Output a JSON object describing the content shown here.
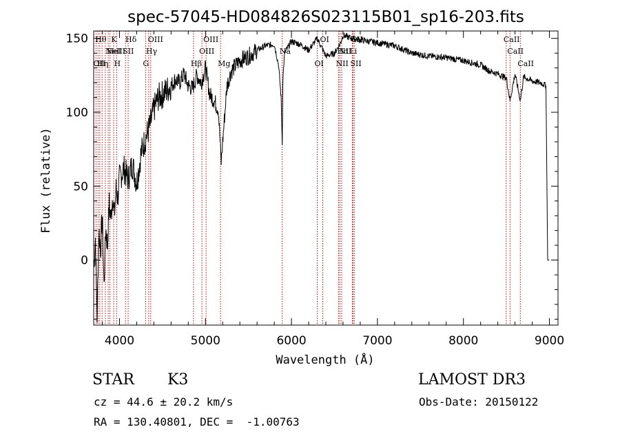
{
  "chart_data": {
    "type": "line",
    "title": "spec-57045-HD084826S023115B01_sp16-203.fits",
    "xlabel": "Wavelength (Å)",
    "ylabel": "Flux (relative)",
    "xlim": [
      3700,
      9100
    ],
    "ylim": [
      -44,
      155
    ],
    "xticks": [
      4000,
      5000,
      6000,
      7000,
      8000,
      9000
    ],
    "yticks": [
      0,
      50,
      100,
      150
    ],
    "x_minor_step": 200,
    "y_minor_step": 10,
    "line_color": "#000000",
    "marker_color": "#cc0000",
    "series": [
      {
        "name": "flux",
        "x": [
          3700,
          3720,
          3740,
          3760,
          3780,
          3800,
          3820,
          3840,
          3860,
          3880,
          3900,
          3920,
          3940,
          3960,
          3980,
          4000,
          4050,
          4100,
          4150,
          4200,
          4250,
          4300,
          4350,
          4400,
          4450,
          4500,
          4550,
          4600,
          4650,
          4700,
          4750,
          4800,
          4850,
          4900,
          4950,
          5000,
          5050,
          5100,
          5150,
          5170,
          5183,
          5200,
          5250,
          5300,
          5400,
          5500,
          5600,
          5700,
          5800,
          5850,
          5880,
          5893,
          5900,
          5920,
          6000,
          6100,
          6200,
          6300,
          6400,
          6500,
          6563,
          6600,
          6700,
          6800,
          6900,
          7000,
          7200,
          7400,
          7600,
          7800,
          8000,
          8200,
          8300,
          8400,
          8500,
          8542,
          8600,
          8662,
          8700,
          8800,
          8900,
          8960,
          8980,
          9000
        ],
        "values": [
          -5,
          15,
          -38,
          20,
          8,
          30,
          -18,
          22,
          10,
          38,
          28,
          45,
          30,
          48,
          42,
          55,
          62,
          55,
          65,
          52,
          72,
          82,
          90,
          102,
          110,
          112,
          115,
          118,
          122,
          120,
          126,
          118,
          116,
          125,
          120,
          130,
          112,
          108,
          102,
          80,
          66,
          80,
          118,
          128,
          135,
          138,
          142,
          145,
          146,
          132,
          110,
          78,
          122,
          140,
          148,
          146,
          142,
          150,
          138,
          140,
          146,
          152,
          150,
          149,
          148,
          147,
          145,
          140,
          138,
          137,
          135,
          132,
          128,
          126,
          123,
          108,
          126,
          108,
          124,
          121,
          120,
          118,
          0,
          0
        ]
      }
    ],
    "lines": [
      {
        "wave": 3727,
        "label": "OII",
        "row": 2
      },
      {
        "wave": 3750,
        "label": "Hθ",
        "row": 0
      },
      {
        "wave": 3771,
        "label": "Hη",
        "row": 2
      },
      {
        "wave": 3798,
        "label": "",
        "row": -1
      },
      {
        "wave": 3835,
        "label": "",
        "row": -1
      },
      {
        "wave": 3869,
        "label": "NeIII",
        "row": 1
      },
      {
        "wave": 3889,
        "label": "HeI",
        "row": 1
      },
      {
        "wave": 3933,
        "label": "K",
        "row": 0
      },
      {
        "wave": 3968,
        "label": "H",
        "row": 2
      },
      {
        "wave": 4070,
        "label": "SII",
        "row": 1
      },
      {
        "wave": 4101,
        "label": "Hδ",
        "row": 0
      },
      {
        "wave": 4304,
        "label": "G",
        "row": 2
      },
      {
        "wave": 4340,
        "label": "Hγ",
        "row": 1
      },
      {
        "wave": 4363,
        "label": "OIII",
        "row": 0
      },
      {
        "wave": 4861,
        "label": "Hβ",
        "row": 2
      },
      {
        "wave": 4959,
        "label": "OIII",
        "row": 1
      },
      {
        "wave": 5007,
        "label": "OIII",
        "row": 0
      },
      {
        "wave": 5175,
        "label": "Mg",
        "row": 2
      },
      {
        "wave": 5893,
        "label": "Na",
        "row": 1
      },
      {
        "wave": 6300,
        "label": "OI",
        "row": 2
      },
      {
        "wave": 6364,
        "label": "OI",
        "row": 0
      },
      {
        "wave": 6548,
        "label": "NII",
        "row": 2
      },
      {
        "wave": 6563,
        "label": "Hα",
        "row": 1
      },
      {
        "wave": 6584,
        "label": "NII",
        "row": 1
      },
      {
        "wave": 6708,
        "label": "Li",
        "row": 1
      },
      {
        "wave": 6716,
        "label": "SII",
        "row": 2
      },
      {
        "wave": 6731,
        "label": "SII",
        "row": 0
      },
      {
        "wave": 8498,
        "label": "CaII",
        "row": 0
      },
      {
        "wave": 8542,
        "label": "CaII",
        "row": 1
      },
      {
        "wave": 8662,
        "label": "CaII",
        "row": 2
      }
    ]
  },
  "info": {
    "object_class": "STAR",
    "subclass": "K3",
    "redshift": "cz = 44.6 ± 20.2 km/s",
    "coords": "RA = 130.40801, DEC =  -1.00763",
    "survey": "LAMOST DR3",
    "obs_date": "Obs-Date: 20150122"
  }
}
